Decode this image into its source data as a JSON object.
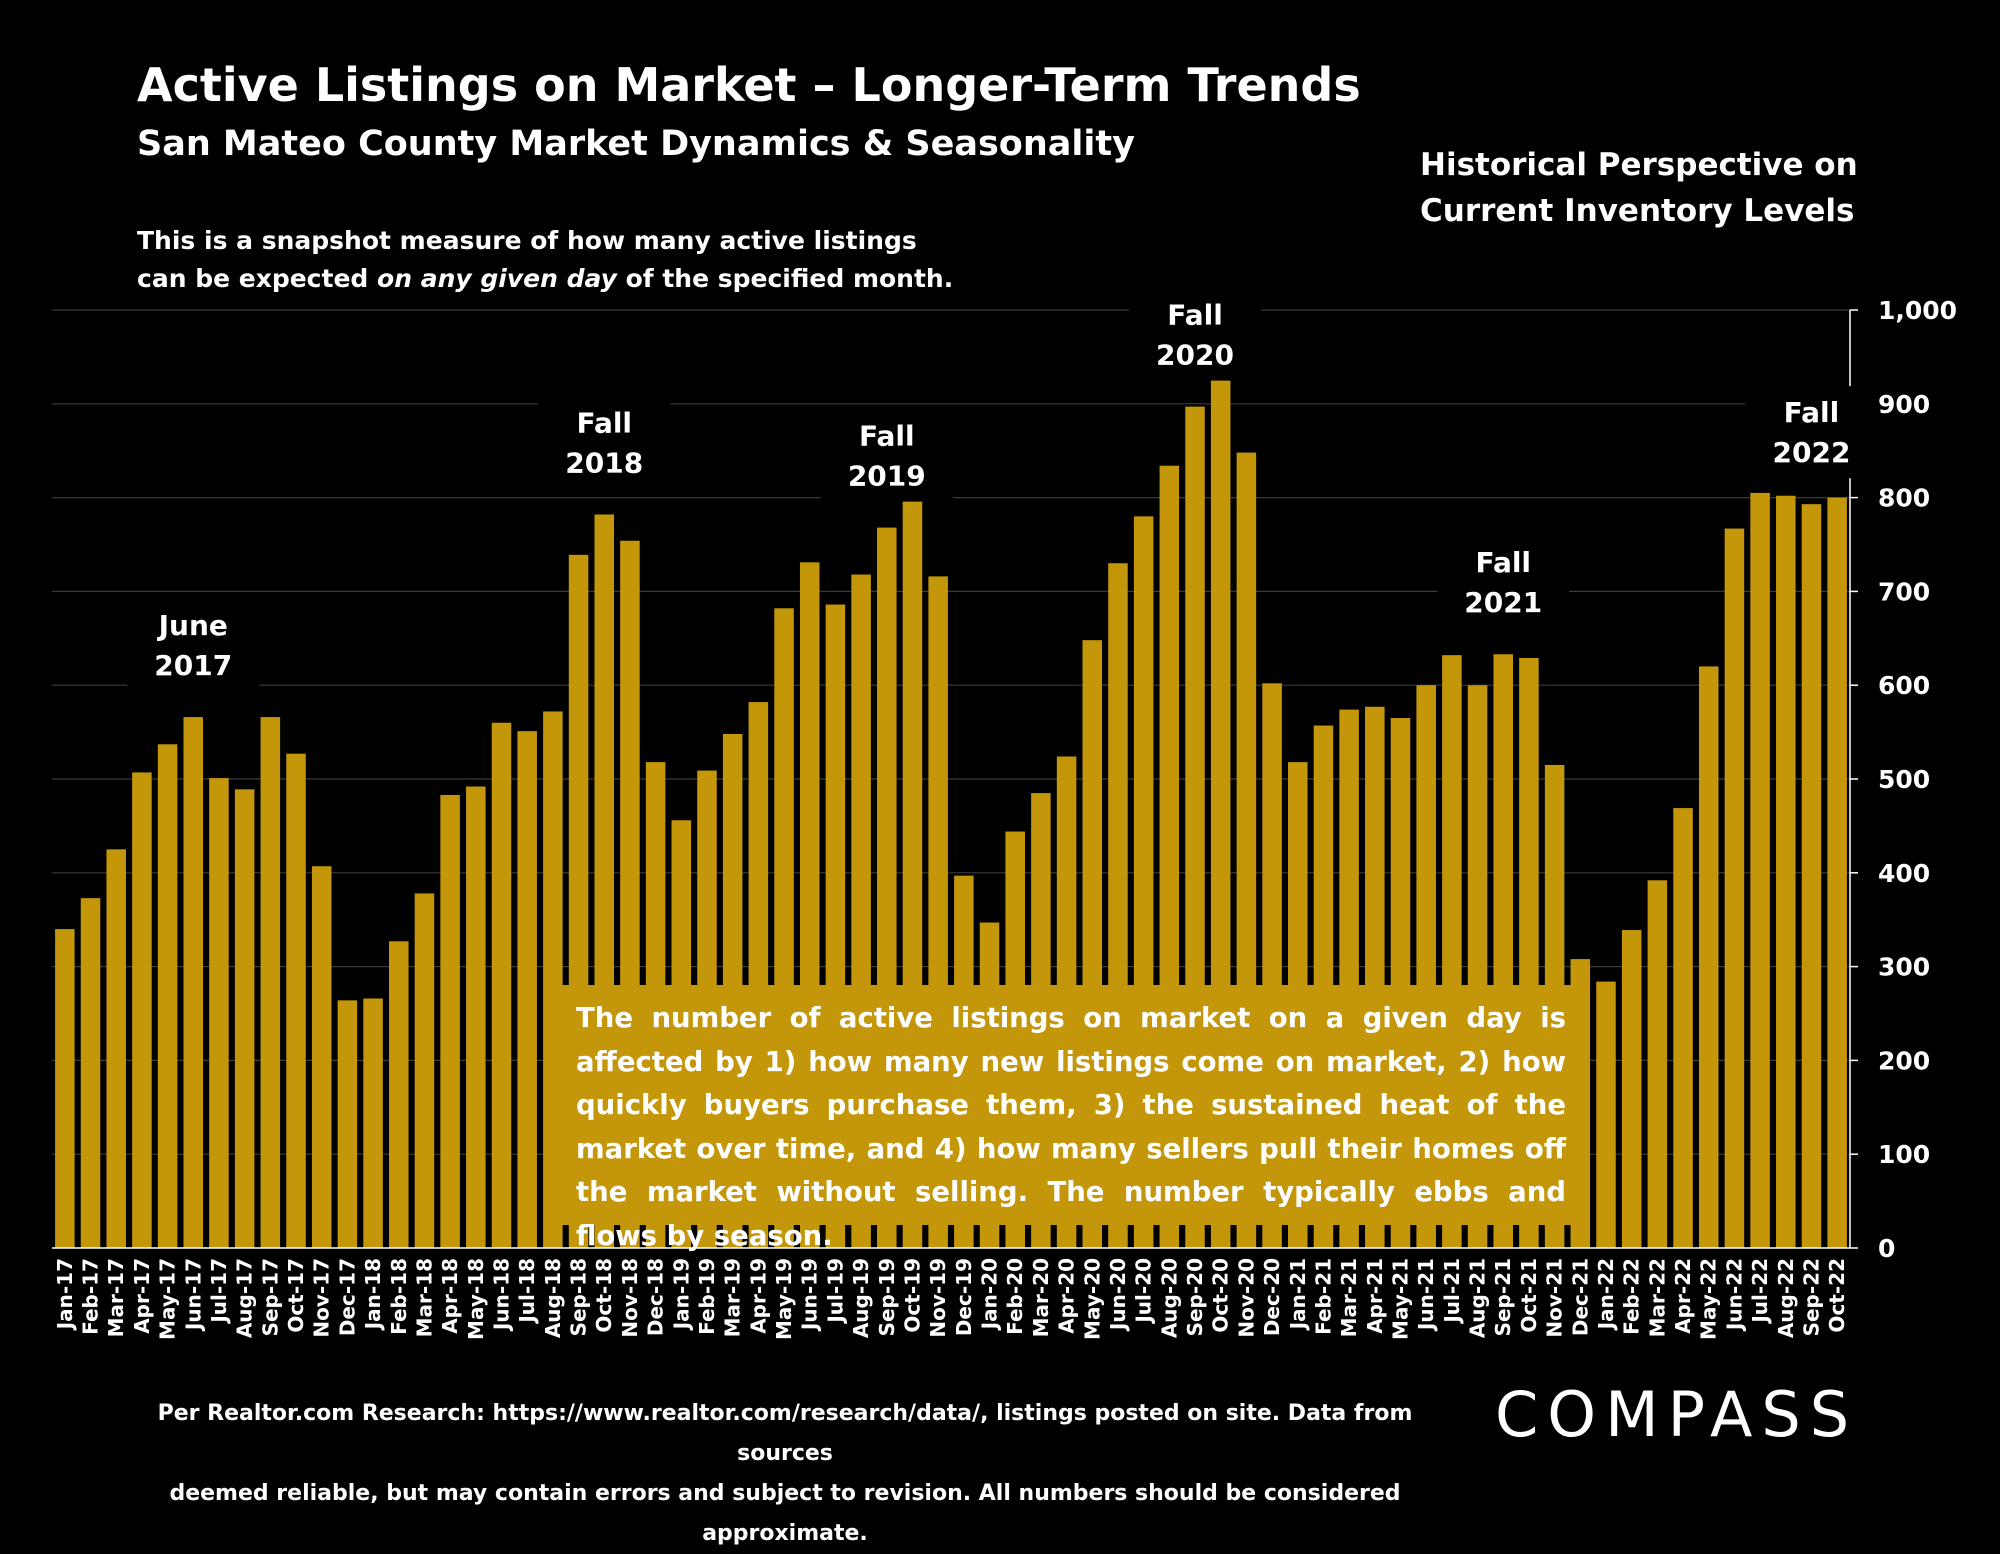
{
  "title": "Active Listings on Market – Longer-Term Trends",
  "subtitle": "San Mateo County Market Dynamics & Seasonality",
  "description": {
    "line1": "This is a snapshot measure of how many active listings",
    "line2_pre": "can be expected ",
    "line2_em": "on any given day",
    "line2_post": " of the specified month."
  },
  "perspective": {
    "line1": "Historical Perspective on",
    "line2": "Current Inventory Levels"
  },
  "info_box": "The number of active listings on market on a given day is affected by 1) how many new listings come on market, 2) how quickly buyers purchase them, 3) the sustained heat of the market over time, and 4) how many sellers pull their homes off the market without selling. The number typically ebbs and flows by season.",
  "source_note": {
    "line1": "Per Realtor.com Research:  https://www.realtor.com/research/data/, listings posted on site. Data from sources",
    "line2": "deemed reliable, but may contain errors and subject to revision. All numbers should be considered approximate."
  },
  "logo": "COMPASS",
  "colors": {
    "bar": "#c4970a",
    "background": "#000000",
    "text": "#ffffff",
    "grid": "#3a3a3a"
  },
  "chart_data": {
    "type": "bar",
    "categories": [
      "Jan-17",
      "Feb-17",
      "Mar-17",
      "Apr-17",
      "May-17",
      "Jun-17",
      "Jul-17",
      "Aug-17",
      "Sep-17",
      "Oct-17",
      "Nov-17",
      "Dec-17",
      "Jan-18",
      "Feb-18",
      "Mar-18",
      "Apr-18",
      "May-18",
      "Jun-18",
      "Jul-18",
      "Aug-18",
      "Sep-18",
      "Oct-18",
      "Nov-18",
      "Dec-18",
      "Jan-19",
      "Feb-19",
      "Mar-19",
      "Apr-19",
      "May-19",
      "Jun-19",
      "Jul-19",
      "Aug-19",
      "Sep-19",
      "Oct-19",
      "Nov-19",
      "Dec-19",
      "Jan-20",
      "Feb-20",
      "Mar-20",
      "Apr-20",
      "May-20",
      "Jun-20",
      "Jul-20",
      "Aug-20",
      "Sep-20",
      "Oct-20",
      "Nov-20",
      "Dec-20",
      "Jan-21",
      "Feb-21",
      "Mar-21",
      "Apr-21",
      "May-21",
      "Jun-21",
      "Jul-21",
      "Aug-21",
      "Sep-21",
      "Oct-21",
      "Nov-21",
      "Dec-21",
      "Jan-22",
      "Feb-22",
      "Mar-22",
      "Apr-22",
      "May-22",
      "Jun-22",
      "Jul-22",
      "Aug-22",
      "Sep-22",
      "Oct-22"
    ],
    "values": [
      340,
      373,
      425,
      507,
      537,
      566,
      501,
      489,
      566,
      527,
      407,
      264,
      266,
      327,
      378,
      483,
      492,
      560,
      551,
      572,
      739,
      782,
      754,
      518,
      456,
      509,
      548,
      582,
      682,
      731,
      686,
      718,
      768,
      812,
      716,
      397,
      347,
      444,
      485,
      524,
      648,
      730,
      780,
      834,
      897,
      938,
      848,
      602,
      518,
      557,
      574,
      577,
      565,
      600,
      632,
      600,
      633,
      629,
      515,
      308,
      284,
      339,
      392,
      469,
      620,
      767,
      805,
      802,
      793,
      800
    ],
    "ylim": [
      0,
      1000
    ],
    "yticks": [
      "0",
      "100",
      "200",
      "300",
      "400",
      "500",
      "600",
      "700",
      "800",
      "900",
      "1,000"
    ],
    "ytick_values": [
      0,
      100,
      200,
      300,
      400,
      500,
      600,
      700,
      800,
      900,
      1000
    ],
    "y_axis_side": "right",
    "grid": true,
    "annotations": [
      {
        "index": 5,
        "line1": "June",
        "line2": "2017"
      },
      {
        "index": 21,
        "line1": "Fall",
        "line2": "2018"
      },
      {
        "index": 32,
        "line1": "Fall",
        "line2": "2019"
      },
      {
        "index": 44,
        "line1": "Fall",
        "line2": "2020"
      },
      {
        "index": 56,
        "line1": "Fall",
        "line2": "2021"
      },
      {
        "index": 68,
        "line1": "Fall",
        "line2": "2022"
      }
    ]
  }
}
